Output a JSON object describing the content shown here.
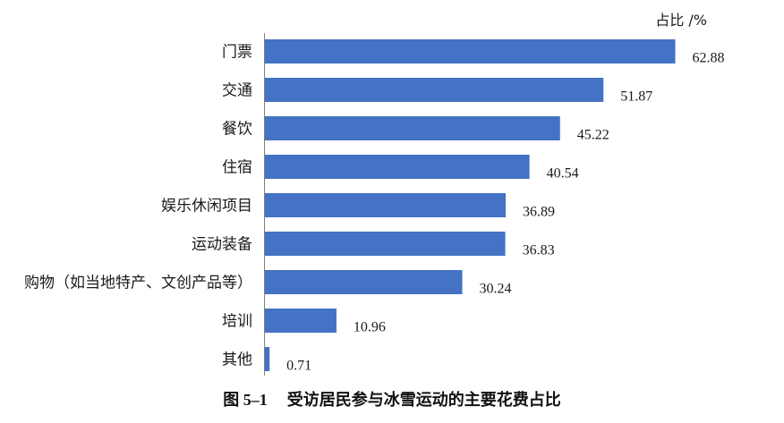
{
  "chart_data": {
    "type": "bar",
    "orientation": "horizontal",
    "unit_label": "占比 /%",
    "categories": [
      "门票",
      "交通",
      "餐饮",
      "住宿",
      "娱乐休闲项目",
      "运动装备",
      "购物（如当地特产、文创产品等）",
      "培训",
      "其他"
    ],
    "values": [
      62.88,
      51.87,
      45.22,
      40.54,
      36.89,
      36.83,
      30.24,
      10.96,
      0.71
    ],
    "value_labels": [
      "62.88",
      "51.87",
      "45.22",
      "40.54",
      "36.89",
      "36.83",
      "30.24",
      "10.96",
      "0.71"
    ],
    "xlim": [
      0,
      65
    ],
    "bar_color": "#4472c4",
    "axis_color": "#7f7f7f",
    "grid": false,
    "legend": "none"
  },
  "caption": {
    "number": "图 5–1",
    "text": "受访居民参与冰雪运动的主要花费占比"
  }
}
